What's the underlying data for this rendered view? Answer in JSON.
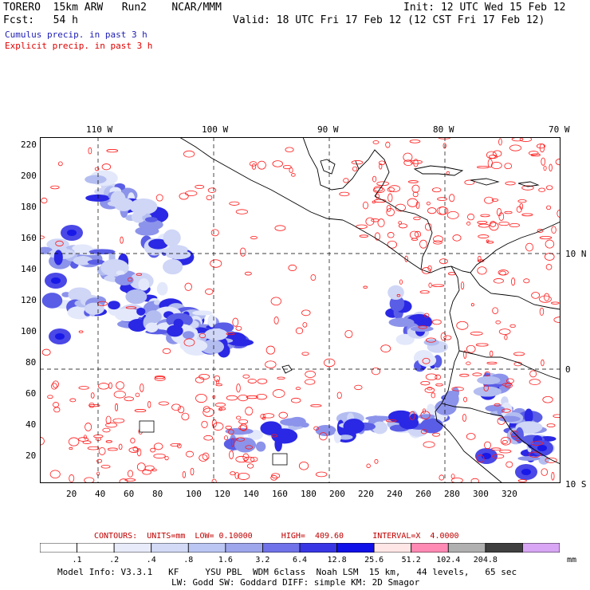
{
  "header": {
    "model": "TORERO  15km ARW   Run2    NCAR/MMM",
    "init": "Init: 12 UTC Wed 15 Feb 12",
    "fcst": "Fcst:   54 h",
    "valid": "Valid: 18 UTC Fri 17 Feb 12 (12 CST Fri 17 Feb 12)",
    "cumulus": "Cumulus precip. in past 3 h",
    "explicit": "Explicit precip. in past 3 h"
  },
  "colors": {
    "cumulus_text": "#1c1cb4",
    "explicit_text": "#e00000",
    "contour": "#ff0000",
    "coast": "#000000"
  },
  "map": {
    "top_labels": [
      "110 W",
      "100 W",
      "90 W",
      "80 W",
      "70 W"
    ],
    "right_labels": [
      "10 N",
      "0",
      "10 S"
    ],
    "y_ticks": [
      "220",
      "200",
      "180",
      "160",
      "140",
      "120",
      "100",
      "80",
      "60",
      "40",
      "20"
    ],
    "x_ticks": [
      "20",
      "40",
      "60",
      "80",
      "100",
      "120",
      "140",
      "160",
      "180",
      "200",
      "220",
      "240",
      "260",
      "280",
      "300",
      "320"
    ]
  },
  "contours_line": "CONTOURS:  UNITS=mm  LOW= 0.10000      HIGH=  409.60      INTERVAL=X  4.0000",
  "colorbar": {
    "labels": [
      ".1",
      ".2",
      ".4",
      ".8",
      "1.6",
      "3.2",
      "6.4",
      "12.8",
      "25.6",
      "51.2",
      "102.4",
      "204.8"
    ],
    "units": "mm",
    "colors": [
      "#ffffff",
      "#ffffff",
      "#e8ecfa",
      "#d3daf6",
      "#bcc6f2",
      "#9ea6ec",
      "#6f72e8",
      "#3836e4",
      "#1010e8",
      "#ffe6e6",
      "#ff8ab4",
      "#b0b0b0",
      "#404040",
      "#d8a6f4"
    ]
  },
  "footer": {
    "line1": "Model Info: V3.3.1   KF     YSU PBL  WDM 6class  Noah LSM  15 km,   44 levels,   65 sec",
    "line2": "LW: Godd SW: Goddard DIFF: simple KM: 2D Smagor"
  }
}
